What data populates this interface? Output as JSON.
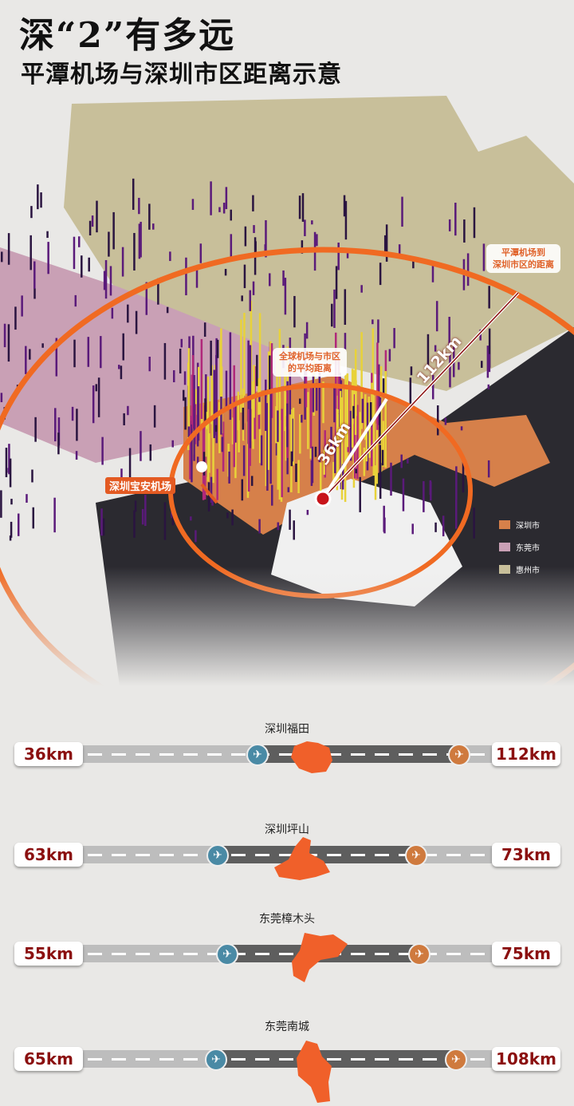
{
  "header": {
    "title": "深“2”有多远",
    "subtitle": "平潭机场与深圳市区距离示意"
  },
  "map": {
    "callout_outer": [
      "平潭机场到",
      "深圳市区的距离"
    ],
    "callout_inner": [
      "全球机场与市区",
      "的平均距离"
    ],
    "outer_distance": "112km",
    "inner_distance": "36km",
    "airport_label": "深圳宝安机场",
    "legend": [
      {
        "label": "深圳市",
        "color": "#d6804a"
      },
      {
        "label": "东莞市",
        "color": "#c9a0b5"
      },
      {
        "label": "惠州市",
        "color": "#c8bf9a"
      }
    ],
    "colors": {
      "ring": "#f06a22",
      "sea": "#2b2a30",
      "bars_high": "#e8d23a",
      "bars_low": "#5a1a7a"
    }
  },
  "comparisons": [
    {
      "name": "深圳福田",
      "left": "36km",
      "right": "112km"
    },
    {
      "name": "深圳坪山",
      "left": "63km",
      "right": "73km"
    },
    {
      "name": "东莞樟木头",
      "left": "55km",
      "right": "75km"
    },
    {
      "name": "东莞南城",
      "left": "65km",
      "right": "108km"
    }
  ],
  "icons": {
    "left_airport": "airplane-icon-blue",
    "right_airport": "airplane-icon-orange",
    "pin": "location-pin-icon"
  }
}
